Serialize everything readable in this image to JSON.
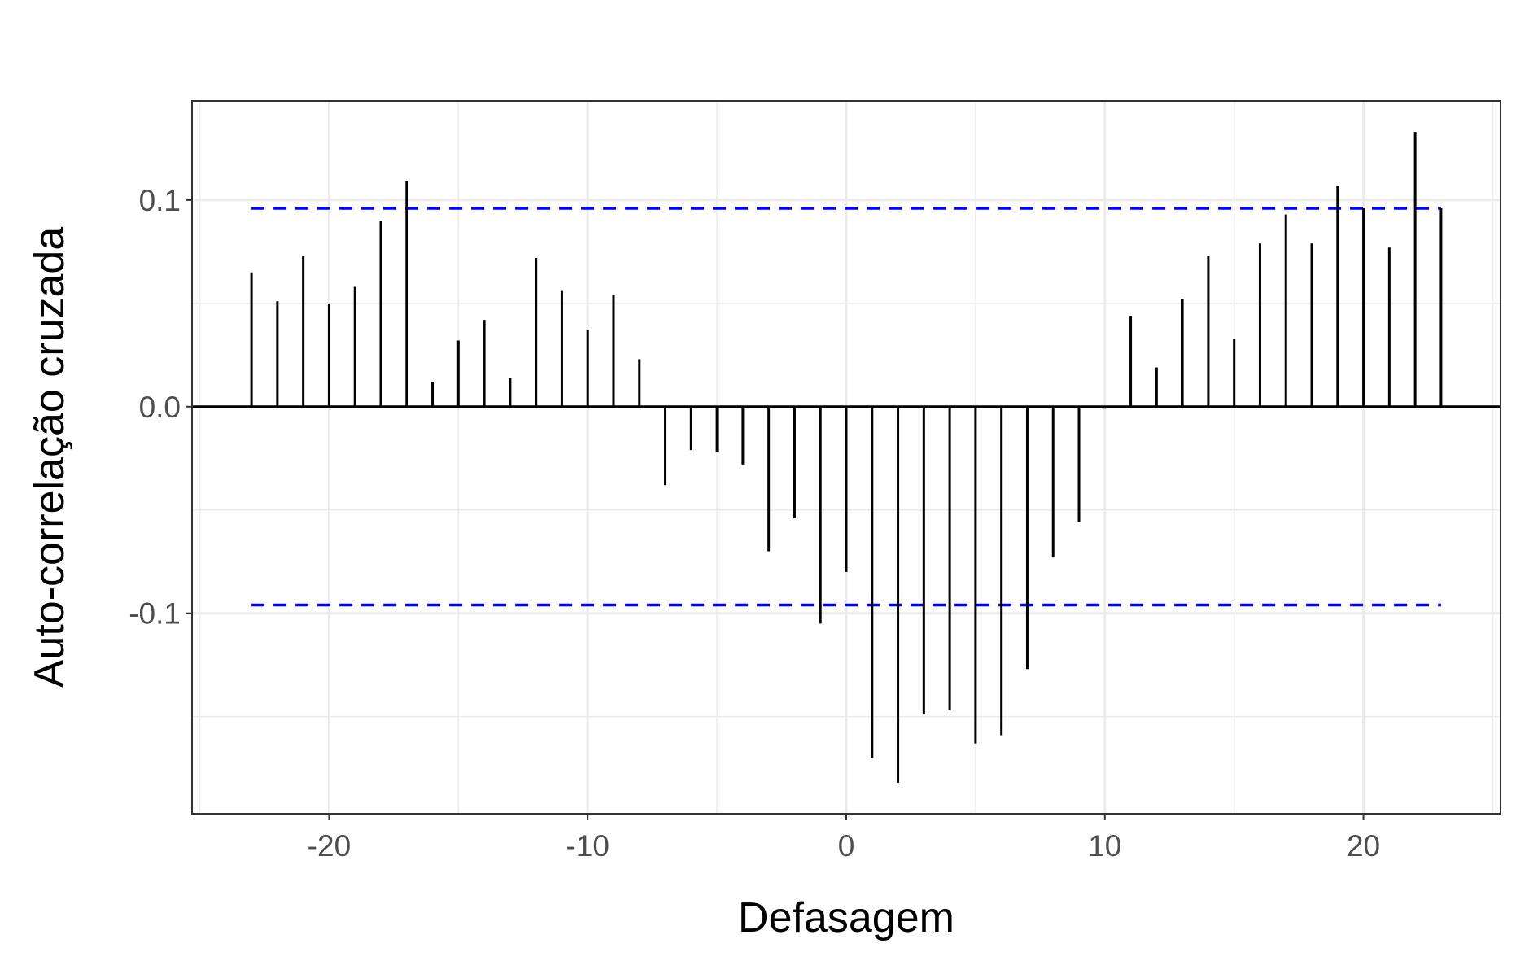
{
  "chart_data": {
    "type": "bar",
    "subtype": "cross-correlation stem plot",
    "title": "",
    "xlabel": "Defasagem",
    "ylabel": "Auto-correlação cruzada",
    "xlim": [
      -25.3,
      25.3
    ],
    "ylim": [
      -0.197,
      0.148
    ],
    "x_ticks": [
      -20,
      -10,
      0,
      10,
      20
    ],
    "x_tick_labels": [
      "-20",
      "-10",
      "0",
      "10",
      "20"
    ],
    "y_ticks": [
      -0.1,
      0.0,
      0.1
    ],
    "y_tick_labels": [
      "-0.1",
      "0.0",
      "0.1"
    ],
    "grid": true,
    "legend": "none",
    "lags": [
      -23,
      -22,
      -21,
      -20,
      -19,
      -18,
      -17,
      -16,
      -15,
      -14,
      -13,
      -12,
      -11,
      -10,
      -9,
      -8,
      -7,
      -6,
      -5,
      -4,
      -3,
      -2,
      -1,
      0,
      1,
      2,
      3,
      4,
      5,
      6,
      7,
      8,
      9,
      10,
      11,
      12,
      13,
      14,
      15,
      16,
      17,
      18,
      19,
      20,
      21,
      22,
      23
    ],
    "values": [
      0.065,
      0.051,
      0.073,
      0.05,
      0.058,
      0.09,
      0.109,
      0.012,
      0.032,
      0.042,
      0.014,
      0.072,
      0.056,
      0.037,
      0.054,
      0.023,
      -0.038,
      -0.021,
      -0.022,
      -0.028,
      -0.07,
      -0.054,
      -0.105,
      -0.08,
      -0.17,
      -0.182,
      -0.149,
      -0.147,
      -0.163,
      -0.159,
      -0.127,
      -0.073,
      -0.056,
      -0.001,
      0.044,
      0.019,
      0.052,
      0.073,
      0.033,
      0.079,
      0.093,
      0.079,
      0.107,
      0.096,
      0.077,
      0.133,
      0.096
    ],
    "confidence_band": {
      "upper": 0.096,
      "lower": -0.096,
      "x_range": [
        -23,
        23
      ]
    },
    "colors": {
      "stem": "#000000",
      "band": "#0000ff",
      "grid": "#ebebeb",
      "panel_border": "#333333"
    }
  }
}
